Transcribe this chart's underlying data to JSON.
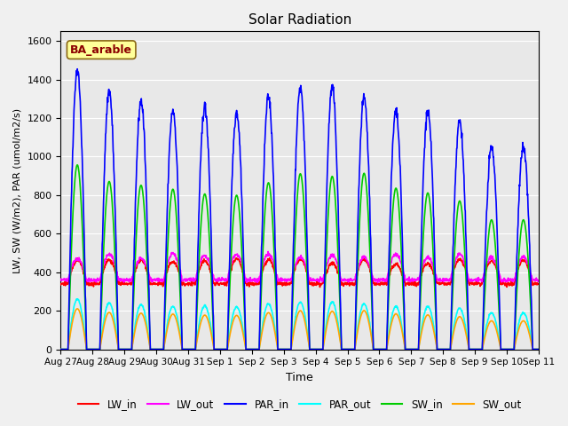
{
  "title": "Solar Radiation",
  "xlabel": "Time",
  "ylabel": "LW, SW (W/m2), PAR (umol/m2/s)",
  "annotation": "BA_arable",
  "annotation_color": "#8B0000",
  "annotation_bg": "#FFFF99",
  "annotation_border": "#8B6914",
  "ylim": [
    0,
    1650
  ],
  "yticks": [
    0,
    200,
    400,
    600,
    800,
    1000,
    1200,
    1400,
    1600
  ],
  "x_tick_labels": [
    "Aug 27",
    "Aug 28",
    "Aug 29",
    "Aug 30",
    "Aug 31",
    "Sep 1",
    "Sep 2",
    "Sep 3",
    "Sep 4",
    "Sep 5",
    "Sep 6",
    "Sep 7",
    "Sep 8",
    "Sep 9",
    "Sep 10",
    "Sep 11"
  ],
  "series": {
    "LW_in": {
      "color": "#FF0000",
      "lw": 1.2
    },
    "LW_out": {
      "color": "#FF00FF",
      "lw": 1.2
    },
    "PAR_in": {
      "color": "#0000FF",
      "lw": 1.2
    },
    "PAR_out": {
      "color": "#00FFFF",
      "lw": 1.2
    },
    "SW_in": {
      "color": "#00CC00",
      "lw": 1.2
    },
    "SW_out": {
      "color": "#FFA500",
      "lw": 1.2
    }
  },
  "bg_color": "#E8E8E8",
  "grid_color": "#FFFFFF",
  "n_days": 15,
  "dt": 0.25,
  "par_peaks": [
    1450,
    1340,
    1290,
    1240,
    1260,
    1230,
    1310,
    1360,
    1360,
    1305,
    1230,
    1230,
    1185,
    1050,
    1050
  ],
  "sw_peaks_factor": [
    0.66,
    0.65,
    0.66,
    0.67,
    0.64,
    0.65,
    0.66,
    0.67,
    0.66,
    0.7,
    0.68,
    0.66,
    0.65,
    0.64,
    0.64
  ],
  "lw_base": 340,
  "rise": 5.5,
  "sett": 19.5
}
